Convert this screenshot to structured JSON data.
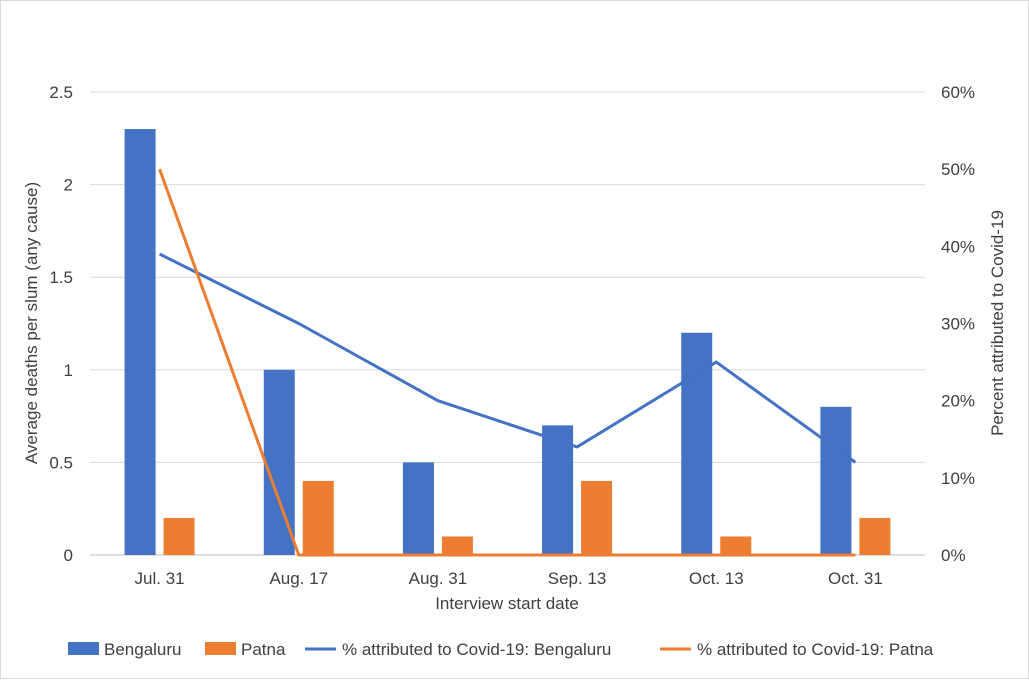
{
  "chart_data": {
    "type": "bar",
    "categories": [
      "Jul. 31",
      "Aug. 17",
      "Aug. 31",
      "Sep. 13",
      "Oct. 13",
      "Oct. 31"
    ],
    "series": [
      {
        "name": "Bengaluru",
        "type": "bar",
        "axis": "left",
        "color": "#4472c4",
        "values": [
          2.3,
          1.0,
          0.5,
          0.7,
          1.2,
          0.8
        ]
      },
      {
        "name": "Patna",
        "type": "bar",
        "axis": "left",
        "color": "#ed7d31",
        "values": [
          0.2,
          0.4,
          0.1,
          0.4,
          0.1,
          0.2
        ]
      },
      {
        "name": "% attributed to Covid-19: Bengaluru",
        "type": "line",
        "axis": "right",
        "color": "#4472c4",
        "values": [
          39,
          30,
          20,
          14,
          25,
          12
        ]
      },
      {
        "name": "% attributed to Covid-19: Patna",
        "type": "line",
        "axis": "right",
        "color": "#ed7d31",
        "values": [
          50,
          0,
          0,
          0,
          0,
          0
        ]
      }
    ],
    "xlabel": "Interview start date",
    "ylabel": "Average deaths per slum (any cause)",
    "y2label": "Percent attributed to Covid-19",
    "ylim": [
      0,
      2.5
    ],
    "yticks": [
      0,
      0.5,
      1,
      1.5,
      2,
      2.5
    ],
    "ytick_labels": [
      "0",
      "0.5",
      "1",
      "1.5",
      "2",
      "2.5"
    ],
    "y2lim": [
      0,
      60
    ],
    "y2ticks": [
      0,
      10,
      20,
      30,
      40,
      50,
      60
    ],
    "y2tick_labels": [
      "0%",
      "10%",
      "20%",
      "30%",
      "40%",
      "50%",
      "60%"
    ],
    "grid": true,
    "legend": "bottom"
  }
}
